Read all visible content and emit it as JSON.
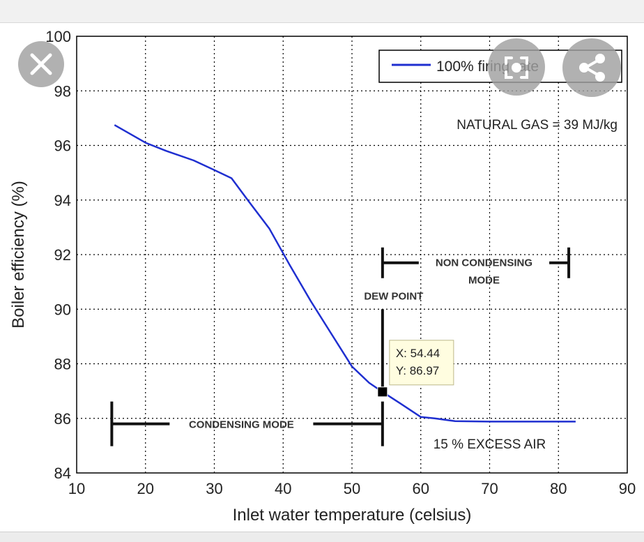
{
  "chart_data": {
    "type": "line",
    "xlabel": "Inlet water temperature (celsius)",
    "ylabel": "Boiler efficiency (%)",
    "xlim": [
      10,
      90
    ],
    "ylim": [
      84,
      100
    ],
    "xticks": [
      "10",
      "20",
      "30",
      "40",
      "50",
      "60",
      "70",
      "80",
      "90"
    ],
    "yticks": [
      "84",
      "86",
      "88",
      "90",
      "92",
      "94",
      "96",
      "98",
      "100"
    ],
    "grid": true,
    "legend_position": "top-right",
    "series": [
      {
        "name": "100% firing rate",
        "color": "#1f2fd0",
        "x": [
          15.5,
          20,
          23,
          27,
          30,
          32.5,
          35,
          38,
          41,
          44,
          47,
          50,
          52.5,
          54.44,
          57,
          60,
          62,
          65,
          70,
          75,
          82.5
        ],
        "y": [
          96.75,
          96.1,
          95.8,
          95.45,
          95.1,
          94.8,
          93.95,
          92.95,
          91.6,
          90.3,
          89.1,
          87.9,
          87.3,
          86.97,
          86.55,
          86.05,
          86.0,
          85.9,
          85.88,
          85.88,
          85.88
        ]
      }
    ],
    "annotations": {
      "fuel": "NATURAL GAS = 39 MJ/kg",
      "excess_air": "15 % EXCESS AIR",
      "dew_point": "DEW POINT",
      "condensing": "CONDENSING MODE",
      "non_condensing_line1": "NON CONDENSING",
      "non_condensing_line2": "MODE",
      "datatip_x": "X: 54.44",
      "datatip_y": "Y: 86.97",
      "marker_x": 54.44,
      "marker_y": 86.97
    },
    "ranges": {
      "condensing": [
        15,
        54.44
      ],
      "non_condensing": [
        54.44,
        81.5
      ],
      "dew_point_line_y": [
        86.97,
        90
      ]
    }
  },
  "overlay": {
    "close_icon": "close-icon",
    "lens_icon": "image-search-icon",
    "share_icon": "share-icon"
  }
}
